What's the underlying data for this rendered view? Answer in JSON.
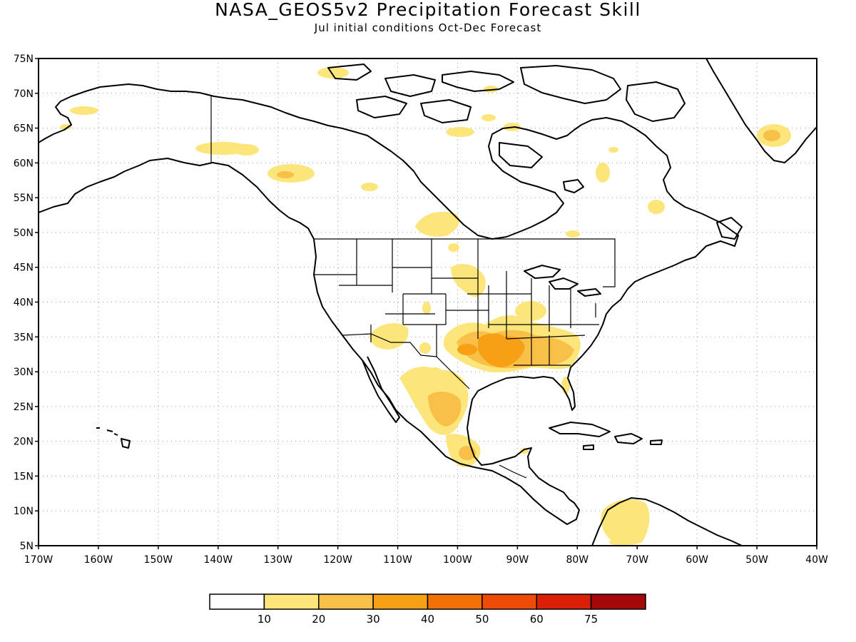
{
  "title": "NASA_GEOS5v2 Precipitation Forecast Skill",
  "subtitle": "Jul initial conditions  Oct-Dec Forecast",
  "chart_data": {
    "type": "heatmap",
    "map_region": "North America",
    "lon_range": [
      -170,
      -40
    ],
    "lat_range": [
      5,
      75
    ],
    "y_ticks": [
      "75N",
      "70N",
      "65N",
      "60N",
      "55N",
      "50N",
      "45N",
      "40N",
      "35N",
      "30N",
      "25N",
      "20N",
      "15N",
      "10N",
      "5N"
    ],
    "x_ticks": [
      "170W",
      "160W",
      "150W",
      "140W",
      "130W",
      "120W",
      "110W",
      "100W",
      "90W",
      "80W",
      "70W",
      "60W",
      "50W",
      "40W"
    ],
    "gridlines": true,
    "colorbar": {
      "labels": [
        "10",
        "20",
        "30",
        "40",
        "50",
        "60",
        "75"
      ],
      "colors": [
        "#ffffff",
        "#fce57a",
        "#f8c049",
        "#f7a015",
        "#f17107",
        "#ee4c05",
        "#da1f06",
        "#a50808"
      ]
    },
    "skill_regions": [
      {
        "region": "Southern Plains / Texas",
        "level": "20-40"
      },
      {
        "region": "Arkansas / Louisiana / Mississippi",
        "level": "30-40"
      },
      {
        "region": "Alabama / Georgia",
        "level": "20-30"
      },
      {
        "region": "Mexico (Sierra Madre)",
        "level": "20-30"
      },
      {
        "region": "Arizona / New Mexico",
        "level": "10-20"
      },
      {
        "region": "Upper Midwest",
        "level": "10-20"
      },
      {
        "region": "Western Canada / Alaska",
        "level": "10-20"
      },
      {
        "region": "Greenland",
        "level": "10-30"
      },
      {
        "region": "Northern South America",
        "level": "10-20"
      }
    ]
  }
}
